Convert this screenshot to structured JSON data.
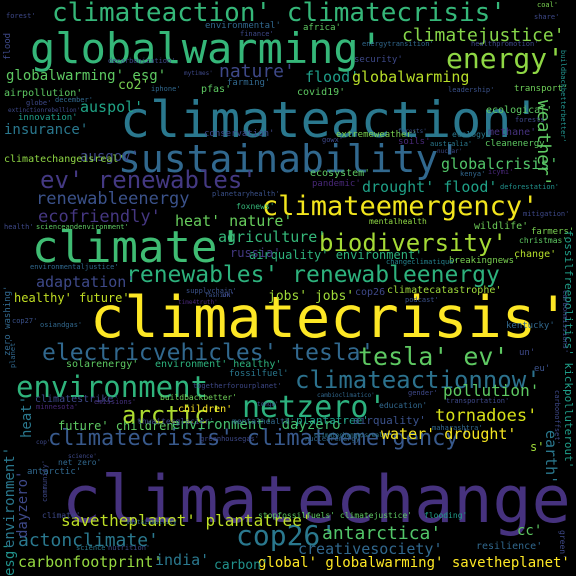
{
  "words": [
    {
      "text": "climatechange",
      "color": "#46327e"
    },
    {
      "text": "climatecrisis'",
      "color": "#fde725"
    },
    {
      "text": "climateaction'",
      "color": "#2a788e"
    },
    {
      "text": "globalwarming'",
      "color": "#35b779"
    },
    {
      "text": "climate'",
      "color": "#3fbc73"
    },
    {
      "text": "sustainability'",
      "color": "#31688e"
    },
    {
      "text": "climateaction' climatecrisis'",
      "color": "#35b779"
    },
    {
      "text": "climateemergency'",
      "color": "#f2e51d"
    },
    {
      "text": "netzero'",
      "color": "#2cb17e"
    },
    {
      "text": "environment",
      "color": "#2fb47c"
    },
    {
      "text": "ev' renewables'",
      "color": "#443983"
    },
    {
      "text": "renewables' renewableenergy",
      "color": "#2db27d"
    },
    {
      "text": "energy'",
      "color": "#8fd744"
    },
    {
      "text": "biodiversity'",
      "color": "#a5db36"
    },
    {
      "text": "electricvehicles' tesla'",
      "color": "#31688e"
    },
    {
      "text": "tesla' ev'",
      "color": "#5ec962"
    },
    {
      "text": "climatecrisis' climateemergency'",
      "color": "#38598c"
    },
    {
      "text": "climateactionnow'",
      "color": "#2c728e"
    },
    {
      "text": "cop26'",
      "color": "#2a788e"
    },
    {
      "text": "arctic'",
      "color": "#addc30"
    },
    {
      "text": "nature'",
      "color": "#3e4989"
    },
    {
      "text": "climatejustice'",
      "color": "#86d549"
    },
    {
      "text": "renewableenergy",
      "color": "#3b528b"
    },
    {
      "text": "ecofriendly'",
      "color": "#453781"
    },
    {
      "text": "heat' nature'",
      "color": "#67cc5c"
    },
    {
      "text": "agriculture'",
      "color": "#35b779"
    },
    {
      "text": "adaptation'",
      "color": "#3e4989"
    },
    {
      "text": "tornadoes'",
      "color": "#d8e219"
    },
    {
      "text": "pollution'",
      "color": "#5ec962"
    },
    {
      "text": "antarctica'",
      "color": "#52c569"
    },
    {
      "text": "savetheplanet' plantatree'",
      "color": "#bddf26"
    },
    {
      "text": "global' globalwarming' savetheplanet'",
      "color": "#fde725"
    },
    {
      "text": "actonclimate'",
      "color": "#2a788e"
    },
    {
      "text": "carbonfootprint'",
      "color": "#95d840"
    },
    {
      "text": "creativesociety'",
      "color": "#31688e"
    },
    {
      "text": "india'",
      "color": "#2a788e"
    },
    {
      "text": "carbon'",
      "color": "#21918c"
    },
    {
      "text": "water' drought'",
      "color": "#f6e620"
    },
    {
      "text": "environment' dayzero'",
      "color": "#46c06f"
    },
    {
      "text": "future' children'",
      "color": "#5ec962"
    },
    {
      "text": "weather'",
      "color": "#5ec962"
    },
    {
      "text": "insurance'",
      "color": "#2a788e"
    },
    {
      "text": "drought' flood'",
      "color": "#1fa187"
    },
    {
      "text": "globalcrisis'",
      "color": "#52c569"
    },
    {
      "text": "ausgov'",
      "color": "#3e4989"
    },
    {
      "text": "auspol'",
      "color": "#20a486"
    },
    {
      "text": "globalwarming' esg'",
      "color": "#5ec962"
    },
    {
      "text": "co2'",
      "color": "#7ad151"
    },
    {
      "text": "flood'",
      "color": "#1f9e89"
    },
    {
      "text": "globalwarming",
      "color": "#b8de29"
    },
    {
      "text": "jobs' jobs'",
      "color": "#a0da39"
    },
    {
      "text": "healthy' future'",
      "color": "#c2df23"
    },
    {
      "text": "airquality' environment'",
      "color": "#2db27d"
    },
    {
      "text": "heat'",
      "color": "#2a788e"
    },
    {
      "text": "dayzero'",
      "color": "#3e4989"
    },
    {
      "text": "environment'",
      "color": "#2a788e"
    },
    {
      "text": "esg'",
      "color": "#21918c"
    },
    {
      "text": "cc'",
      "color": "#5ec962"
    },
    {
      "text": "earth'",
      "color": "#2a788e"
    },
    {
      "text": "s'",
      "color": "#9fda3a"
    },
    {
      "text": "climatechangeisreal'",
      "color": "#8fd744"
    },
    {
      "text": "ecosystem'",
      "color": "#5ec962"
    },
    {
      "text": "mentalhealth",
      "color": "#8fd744"
    },
    {
      "text": "foxnews'",
      "color": "#35b779"
    },
    {
      "text": "planetaryhealth'",
      "color": "#3b528b"
    },
    {
      "text": "pandemic'",
      "color": "#482878"
    },
    {
      "text": "deforestation'",
      "color": "#21918c"
    },
    {
      "text": "mitigation'",
      "color": "#3e4989"
    },
    {
      "text": "farmers'",
      "color": "#7ad151"
    },
    {
      "text": "christmas'",
      "color": "#5ec962"
    },
    {
      "text": "wildlife'",
      "color": "#6ece58"
    },
    {
      "text": "breakingnews'",
      "color": "#7ad151"
    },
    {
      "text": "change'",
      "color": "#b5de2b"
    },
    {
      "text": "russia'",
      "color": "#443983"
    },
    {
      "text": "changeclimatique'",
      "color": "#26828e"
    },
    {
      "text": "environmentaljustice'",
      "color": "#31688e"
    },
    {
      "text": "supplychain'",
      "color": "#3b528b"
    },
    {
      "text": "climatecatastrophe'",
      "color": "#9fda3a"
    },
    {
      "text": "cop26",
      "color": "#3e4989"
    },
    {
      "text": "podcast'",
      "color": "#3b528b"
    },
    {
      "text": "zero washing'",
      "color": "#31688e"
    },
    {
      "text": "solarenergy'",
      "color": "#5ec962"
    },
    {
      "text": "environment' healthy'",
      "color": "#2db27d"
    },
    {
      "text": "climatestrike'",
      "color": "#3e4989"
    },
    {
      "text": "buildbackbetter'",
      "color": "#6ece58"
    },
    {
      "text": "emissions'",
      "color": "#46327e"
    },
    {
      "text": "children'",
      "color": "#fde725"
    },
    {
      "text": "fossilfuel'",
      "color": "#2a788e"
    },
    {
      "text": "thwaitesglacier'",
      "color": "#3e4989"
    },
    {
      "text": "mentalhealth'",
      "color": "#31688e"
    },
    {
      "text": "plantatree'",
      "color": "#1f9e89"
    },
    {
      "text": "airquality'",
      "color": "#3b528b"
    },
    {
      "text": "maharashtra'",
      "color": "#31688e"
    },
    {
      "text": "nuclearenergy'",
      "color": "#31688e"
    },
    {
      "text": "greenhousegas'",
      "color": "#3e4989"
    },
    {
      "text": "stopfossilfuels' climatejustice'",
      "color": "#5ec962"
    },
    {
      "text": "flooding'",
      "color": "#1f9e89"
    },
    {
      "text": "resilience'",
      "color": "#31688e"
    },
    {
      "text": "climate'",
      "color": "#3e4989"
    },
    {
      "text": "science'",
      "color": "#2a788e"
    },
    {
      "text": "nutrition'",
      "color": "#3e4989"
    },
    {
      "text": "green'",
      "color": "#3e4989"
    },
    {
      "text": "fossilfreepolitics' kickpolluterout'",
      "color": "#1f9e89"
    },
    {
      "text": "kentucky'",
      "color": "#31688e"
    },
    {
      "text": "un'",
      "color": "#3e4989"
    },
    {
      "text": "cop27'",
      "color": "#3b528b"
    },
    {
      "text": "osiandgas'",
      "color": "#31688e"
    },
    {
      "text": "education'",
      "color": "#31688e"
    },
    {
      "text": "gender'",
      "color": "#3e4989"
    },
    {
      "text": "transportation'",
      "color": "#3e4989"
    },
    {
      "text": "eu'",
      "color": "#3b528b"
    },
    {
      "text": "togetherforourplanet'",
      "color": "#3e4989"
    },
    {
      "text": "minnesota'",
      "color": "#482878"
    },
    {
      "text": "antarctic'",
      "color": "#31688e"
    },
    {
      "text": "community'",
      "color": "#3e4989"
    },
    {
      "text": "net zero'",
      "color": "#31688e"
    },
    {
      "text": "conservation'",
      "color": "#3e4989"
    },
    {
      "text": "extremeweather'",
      "color": "#7ad151"
    },
    {
      "text": "ecology'",
      "color": "#2a788e"
    },
    {
      "text": "methane'",
      "color": "#46327e"
    },
    {
      "text": "cleanenergy'",
      "color": "#5ec962"
    },
    {
      "text": "australia'",
      "color": "#2a788e"
    },
    {
      "text": "soils'",
      "color": "#482878"
    },
    {
      "text": "forests'",
      "color": "#3e4989"
    },
    {
      "text": "ecological'",
      "color": "#5ec962"
    },
    {
      "text": "transport'",
      "color": "#6ece58"
    },
    {
      "text": "healthpromotion'",
      "color": "#3e4989"
    },
    {
      "text": "energytransition'",
      "color": "#31688e"
    },
    {
      "text": "security'",
      "color": "#3e4989"
    },
    {
      "text": "africa'",
      "color": "#5ec962"
    },
    {
      "text": "environmental'",
      "color": "#31688e"
    },
    {
      "text": "finance'",
      "color": "#3e4989"
    },
    {
      "text": "decarbonization'",
      "color": "#3e4989"
    },
    {
      "text": "farming'",
      "color": "#31688e"
    },
    {
      "text": "pfas'",
      "color": "#5ec962"
    },
    {
      "text": "covid19'",
      "color": "#5ec962"
    },
    {
      "text": "airpollution'",
      "color": "#5ec962"
    },
    {
      "text": "innovation'",
      "color": "#1f9e89"
    },
    {
      "text": "forest'",
      "color": "#3e4989"
    },
    {
      "text": "coal'",
      "color": "#7ad151"
    },
    {
      "text": "share'",
      "color": "#3e4989"
    },
    {
      "text": "flood",
      "color": "#3e4989"
    },
    {
      "text": "globe'",
      "color": "#3e4989"
    },
    {
      "text": "december'",
      "color": "#31688e"
    },
    {
      "text": "leadership'",
      "color": "#3b528b"
    },
    {
      "text": "buildbackbetterbetter'",
      "color": "#21918c"
    },
    {
      "text": "health'",
      "color": "#3e4989"
    },
    {
      "text": "scienceandenvironment'",
      "color": "#5ec962"
    },
    {
      "text": "iphone'",
      "color": "#31688e"
    },
    {
      "text": "mytimes'",
      "color": "#3e4989"
    },
    {
      "text": "gowx'",
      "color": "#3e4989"
    },
    {
      "text": "time4truth'",
      "color": "#482878"
    },
    {
      "text": "fashion'",
      "color": "#3b528b"
    },
    {
      "text": "uk'",
      "color": "#3e4989"
    },
    {
      "text": "kenya'",
      "color": "#31688e"
    },
    {
      "text": "nucsar'",
      "color": "#3e4989"
    },
    {
      "text": "carbonoffset'",
      "color": "#3e4989"
    },
    {
      "text": "climatechangeisreal",
      "color": "#2a788e"
    },
    {
      "text": "extinctionrebellion'",
      "color": "#3e4989"
    },
    {
      "text": "planet'",
      "color": "#31688e"
    },
    {
      "text": "carbonmissions'",
      "color": "#3e4989"
    },
    {
      "text": "cambioclimatico'",
      "color": "#31688e"
    },
    {
      "text": "science'",
      "color": "#3e4989"
    },
    {
      "text": "cop'",
      "color": "#3e4989"
    },
    {
      "text": "tonga'",
      "color": "#3e4989"
    },
    {
      "text": "sustainability",
      "color": "#31688e"
    },
    {
      "text": "icymi'",
      "color": "#482878"
    },
    {
      "text": "forests'",
      "color": "#3b528b"
    }
  ]
}
